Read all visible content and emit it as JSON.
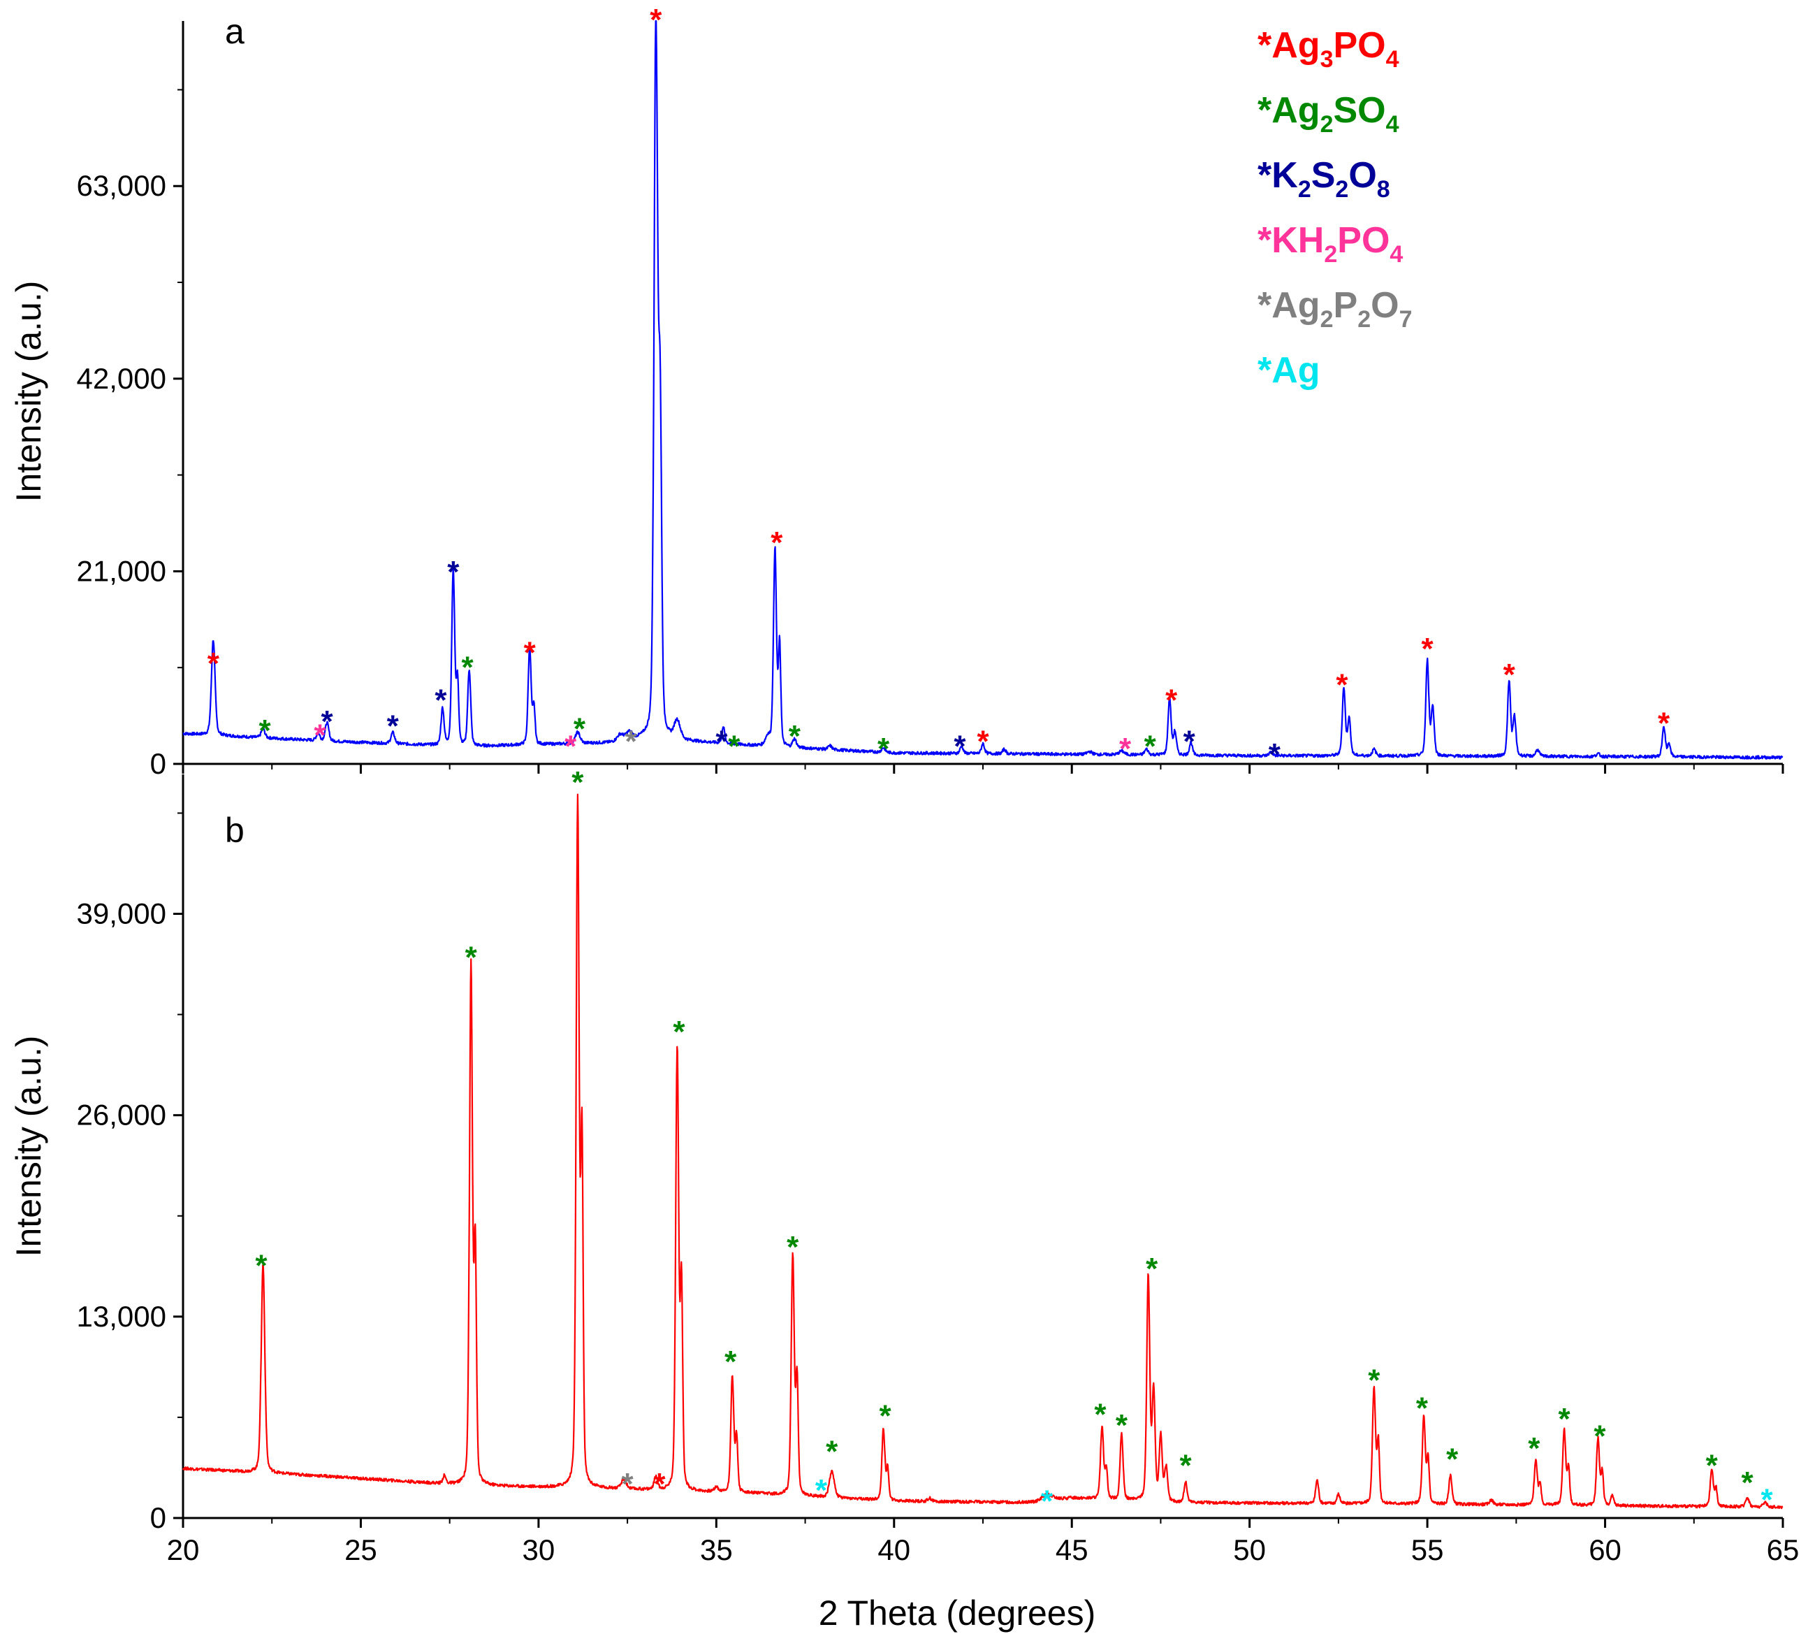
{
  "chart_data": {
    "type": "line",
    "xlabel": "2 Theta (degrees)",
    "xlim": [
      20,
      65
    ],
    "xticks": [
      20,
      25,
      30,
      35,
      40,
      45,
      50,
      55,
      60,
      65
    ],
    "legend": [
      {
        "parts": [
          [
            "*",
            ""
          ],
          [
            "Ag",
            ""
          ],
          [
            "3",
            "sub"
          ],
          [
            "PO",
            ""
          ],
          [
            "4",
            "sub"
          ]
        ],
        "color": "#ff0000"
      },
      {
        "parts": [
          [
            "*",
            ""
          ],
          [
            "Ag",
            ""
          ],
          [
            "2",
            "sub"
          ],
          [
            "SO",
            ""
          ],
          [
            "4",
            "sub"
          ]
        ],
        "color": "#008800"
      },
      {
        "parts": [
          [
            "*",
            ""
          ],
          [
            "K",
            ""
          ],
          [
            "2",
            "sub"
          ],
          [
            "S",
            ""
          ],
          [
            "2",
            "sub"
          ],
          [
            "O",
            ""
          ],
          [
            "8",
            "sub"
          ]
        ],
        "color": "#000099"
      },
      {
        "parts": [
          [
            "*",
            ""
          ],
          [
            "KH",
            ""
          ],
          [
            "2",
            "sub"
          ],
          [
            "PO",
            ""
          ],
          [
            "4",
            "sub"
          ]
        ],
        "color": "#ff3399"
      },
      {
        "parts": [
          [
            "*",
            ""
          ],
          [
            "Ag",
            ""
          ],
          [
            "2",
            "sub"
          ],
          [
            "P",
            ""
          ],
          [
            "2",
            "sub"
          ],
          [
            "O",
            ""
          ],
          [
            "7",
            "sub"
          ]
        ],
        "color": "#808080"
      },
      {
        "parts": [
          [
            "*",
            ""
          ],
          [
            "Ag",
            ""
          ]
        ],
        "color": "#00e5ee"
      }
    ],
    "panels": [
      {
        "label": "a",
        "ylabel": "Intensity (a.u.)",
        "ylim": [
          0,
          81000
        ],
        "yticks": [
          0,
          21000,
          42000,
          63000
        ],
        "ytick_labels": [
          "0",
          "21,000",
          "42,000",
          "63,000"
        ],
        "line_color": "#0000ff",
        "background": [
          [
            20,
            3300
          ],
          [
            24,
            2500
          ],
          [
            28,
            1900
          ],
          [
            32,
            2300
          ],
          [
            33,
            2800
          ],
          [
            36,
            2000
          ],
          [
            40,
            1200
          ],
          [
            50,
            900
          ],
          [
            60,
            800
          ],
          [
            65,
            700
          ]
        ],
        "peaks": [
          [
            20.85,
            10400,
            0.06
          ],
          [
            22.25,
            1000,
            0.06
          ],
          [
            23.8,
            800,
            0.06
          ],
          [
            24.05,
            2000,
            0.06
          ],
          [
            25.9,
            1200,
            0.06
          ],
          [
            27.3,
            4000,
            0.05
          ],
          [
            27.6,
            19000,
            0.05
          ],
          [
            27.72,
            7000,
            0.04
          ],
          [
            28.05,
            8300,
            0.05
          ],
          [
            29.75,
            10600,
            0.05
          ],
          [
            29.87,
            4000,
            0.04
          ],
          [
            31.1,
            1200,
            0.08
          ],
          [
            32.3,
            700,
            0.1
          ],
          [
            32.55,
            800,
            0.1
          ],
          [
            33.3,
            78000,
            0.06
          ],
          [
            33.42,
            34000,
            0.05
          ],
          [
            33.9,
            2000,
            0.1
          ],
          [
            35.2,
            1700,
            0.05
          ],
          [
            36.45,
            1000,
            0.08
          ],
          [
            36.65,
            21500,
            0.05
          ],
          [
            36.78,
            11000,
            0.04
          ],
          [
            37.2,
            900,
            0.06
          ],
          [
            38.2,
            400,
            0.06
          ],
          [
            39.7,
            500,
            0.06
          ],
          [
            41.9,
            800,
            0.05
          ],
          [
            42.5,
            1100,
            0.05
          ],
          [
            43.1,
            500,
            0.05
          ],
          [
            45.5,
            300,
            0.08
          ],
          [
            46.4,
            400,
            0.08
          ],
          [
            47.1,
            600,
            0.06
          ],
          [
            47.75,
            6200,
            0.05
          ],
          [
            47.9,
            2500,
            0.05
          ],
          [
            48.35,
            1400,
            0.05
          ],
          [
            50.6,
            400,
            0.06
          ],
          [
            52.65,
            7400,
            0.05
          ],
          [
            52.8,
            4000,
            0.05
          ],
          [
            53.5,
            700,
            0.06
          ],
          [
            55.0,
            10400,
            0.05
          ],
          [
            55.15,
            5300,
            0.05
          ],
          [
            57.3,
            8100,
            0.05
          ],
          [
            57.45,
            4300,
            0.05
          ],
          [
            58.1,
            700,
            0.06
          ],
          [
            59.8,
            300,
            0.06
          ],
          [
            61.65,
            3300,
            0.05
          ],
          [
            61.8,
            1400,
            0.05
          ]
        ],
        "markers": [
          {
            "x": 20.85,
            "y": 11800,
            "color": "#ff0000"
          },
          {
            "x": 22.3,
            "y": 4500,
            "color": "#008800"
          },
          {
            "x": 23.85,
            "y": 4000,
            "color": "#ff3399"
          },
          {
            "x": 24.05,
            "y": 5500,
            "color": "#000099"
          },
          {
            "x": 25.9,
            "y": 5000,
            "color": "#000099"
          },
          {
            "x": 27.25,
            "y": 7800,
            "color": "#000099"
          },
          {
            "x": 27.6,
            "y": 21800,
            "color": "#000099"
          },
          {
            "x": 28.0,
            "y": 11400,
            "color": "#008800"
          },
          {
            "x": 29.75,
            "y": 13000,
            "color": "#ff0000"
          },
          {
            "x": 30.9,
            "y": 2800,
            "color": "#ff3399"
          },
          {
            "x": 31.15,
            "y": 4700,
            "color": "#008800"
          },
          {
            "x": 32.6,
            "y": 3300,
            "color": "#808080"
          },
          {
            "x": 33.3,
            "y": 82000,
            "color": "#ff0000"
          },
          {
            "x": 35.15,
            "y": 3300,
            "color": "#000099"
          },
          {
            "x": 35.5,
            "y": 2800,
            "color": "#008800"
          },
          {
            "x": 36.7,
            "y": 25000,
            "color": "#ff0000"
          },
          {
            "x": 37.2,
            "y": 3900,
            "color": "#008800"
          },
          {
            "x": 39.7,
            "y": 2500,
            "color": "#008800"
          },
          {
            "x": 41.85,
            "y": 2800,
            "color": "#000099"
          },
          {
            "x": 42.5,
            "y": 3300,
            "color": "#ff0000"
          },
          {
            "x": 46.5,
            "y": 2500,
            "color": "#ff3399"
          },
          {
            "x": 47.2,
            "y": 2800,
            "color": "#008800"
          },
          {
            "x": 47.8,
            "y": 7800,
            "color": "#ff0000"
          },
          {
            "x": 48.3,
            "y": 3300,
            "color": "#000099"
          },
          {
            "x": 50.7,
            "y": 1900,
            "color": "#000099"
          },
          {
            "x": 52.6,
            "y": 9500,
            "color": "#ff0000"
          },
          {
            "x": 55.0,
            "y": 13400,
            "color": "#ff0000"
          },
          {
            "x": 57.3,
            "y": 10600,
            "color": "#ff0000"
          },
          {
            "x": 61.65,
            "y": 5300,
            "color": "#ff0000"
          }
        ]
      },
      {
        "label": "b",
        "ylabel": "Intensity (a.u.)",
        "ylim": [
          0,
          48000
        ],
        "yticks": [
          0,
          13000,
          26000,
          39000
        ],
        "ytick_labels": [
          "0",
          "13,000",
          "26,000",
          "39,000"
        ],
        "line_color": "#ff0000",
        "background": [
          [
            20,
            3200
          ],
          [
            24,
            2700
          ],
          [
            28,
            2100
          ],
          [
            32,
            1900
          ],
          [
            36,
            1600
          ],
          [
            40,
            1100
          ],
          [
            44,
            1000
          ],
          [
            45,
            1300
          ],
          [
            48,
            1000
          ],
          [
            55,
            900
          ],
          [
            60,
            800
          ],
          [
            65,
            700
          ]
        ],
        "peaks": [
          [
            22.25,
            13500,
            0.06
          ],
          [
            27.35,
            500,
            0.05
          ],
          [
            28.1,
            33500,
            0.05
          ],
          [
            28.22,
            15000,
            0.04
          ],
          [
            31.1,
            44000,
            0.05
          ],
          [
            31.22,
            22000,
            0.04
          ],
          [
            32.4,
            600,
            0.08
          ],
          [
            33.3,
            800,
            0.06
          ],
          [
            33.9,
            28500,
            0.05
          ],
          [
            34.02,
            13000,
            0.04
          ],
          [
            35.0,
            300,
            0.06
          ],
          [
            35.45,
            7400,
            0.05
          ],
          [
            35.57,
            3500,
            0.04
          ],
          [
            37.15,
            15500,
            0.05
          ],
          [
            37.27,
            7500,
            0.04
          ],
          [
            38.25,
            1700,
            0.08
          ],
          [
            39.7,
            4600,
            0.05
          ],
          [
            39.82,
            2000,
            0.04
          ],
          [
            41.0,
            200,
            0.06
          ],
          [
            44.3,
            400,
            0.2
          ],
          [
            45.85,
            4700,
            0.05
          ],
          [
            45.97,
            2000,
            0.04
          ],
          [
            46.4,
            4200,
            0.05
          ],
          [
            47.15,
            14500,
            0.05
          ],
          [
            47.3,
            7000,
            0.05
          ],
          [
            47.5,
            4200,
            0.05
          ],
          [
            47.65,
            2200,
            0.05
          ],
          [
            48.2,
            1300,
            0.05
          ],
          [
            51.9,
            1500,
            0.05
          ],
          [
            52.5,
            600,
            0.05
          ],
          [
            53.5,
            7500,
            0.05
          ],
          [
            53.62,
            4000,
            0.04
          ],
          [
            54.9,
            5600,
            0.05
          ],
          [
            55.02,
            3000,
            0.04
          ],
          [
            55.65,
            1900,
            0.05
          ],
          [
            56.8,
            300,
            0.06
          ],
          [
            58.05,
            2900,
            0.05
          ],
          [
            58.17,
            1400,
            0.04
          ],
          [
            58.85,
            4900,
            0.05
          ],
          [
            58.97,
            2400,
            0.04
          ],
          [
            59.8,
            4300,
            0.05
          ],
          [
            59.92,
            2200,
            0.04
          ],
          [
            60.2,
            600,
            0.05
          ],
          [
            63.0,
            2400,
            0.05
          ],
          [
            63.12,
            1200,
            0.04
          ],
          [
            64.0,
            600,
            0.06
          ],
          [
            64.5,
            300,
            0.06
          ]
        ],
        "markers": [
          {
            "x": 22.2,
            "y": 16800,
            "color": "#008800"
          },
          {
            "x": 28.1,
            "y": 36700,
            "color": "#008800"
          },
          {
            "x": 31.1,
            "y": 48000,
            "color": "#008800"
          },
          {
            "x": 32.5,
            "y": 2700,
            "color": "#808080"
          },
          {
            "x": 33.4,
            "y": 2700,
            "color": "#ff0000"
          },
          {
            "x": 33.95,
            "y": 31900,
            "color": "#008800"
          },
          {
            "x": 35.4,
            "y": 10600,
            "color": "#008800"
          },
          {
            "x": 37.15,
            "y": 18000,
            "color": "#008800"
          },
          {
            "x": 37.95,
            "y": 2300,
            "color": "#00e5ee"
          },
          {
            "x": 38.25,
            "y": 4800,
            "color": "#008800"
          },
          {
            "x": 39.75,
            "y": 7100,
            "color": "#008800"
          },
          {
            "x": 44.3,
            "y": 1600,
            "color": "#00e5ee"
          },
          {
            "x": 45.8,
            "y": 7200,
            "color": "#008800"
          },
          {
            "x": 46.4,
            "y": 6500,
            "color": "#008800"
          },
          {
            "x": 47.25,
            "y": 16600,
            "color": "#008800"
          },
          {
            "x": 48.2,
            "y": 3900,
            "color": "#008800"
          },
          {
            "x": 53.5,
            "y": 9400,
            "color": "#008800"
          },
          {
            "x": 54.85,
            "y": 7600,
            "color": "#008800"
          },
          {
            "x": 55.7,
            "y": 4300,
            "color": "#008800"
          },
          {
            "x": 58.0,
            "y": 5000,
            "color": "#008800"
          },
          {
            "x": 58.85,
            "y": 6900,
            "color": "#008800"
          },
          {
            "x": 59.85,
            "y": 5800,
            "color": "#008800"
          },
          {
            "x": 63.0,
            "y": 3900,
            "color": "#008800"
          },
          {
            "x": 64.0,
            "y": 2800,
            "color": "#008800"
          },
          {
            "x": 64.55,
            "y": 1700,
            "color": "#00e5ee"
          }
        ]
      }
    ]
  }
}
